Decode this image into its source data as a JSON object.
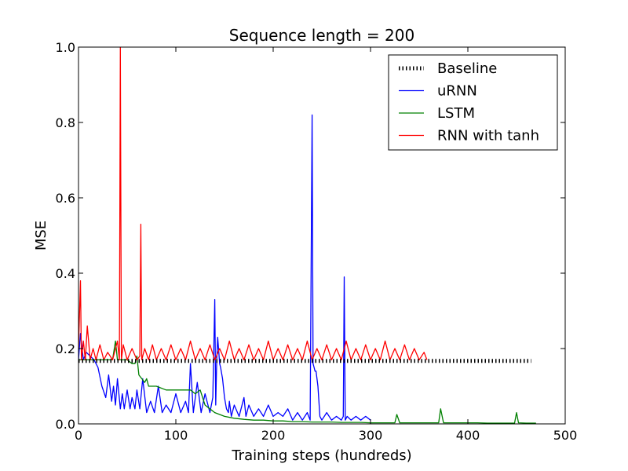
{
  "chart_data": {
    "type": "line",
    "title": "Sequence length = 200",
    "xlabel": "Training steps (hundreds)",
    "ylabel": "MSE",
    "xlim": [
      0,
      500
    ],
    "ylim": [
      0.0,
      1.0
    ],
    "xticks": [
      0,
      100,
      200,
      300,
      400,
      500
    ],
    "xtick_labels": [
      "0",
      "100",
      "200",
      "300",
      "400",
      "500"
    ],
    "yticks": [
      0.0,
      0.2,
      0.4,
      0.6,
      0.8,
      1.0
    ],
    "ytick_labels": [
      "0.0",
      "0.2",
      "0.4",
      "0.6",
      "0.8",
      "1.0"
    ],
    "grid": false,
    "legend_position": "top-right",
    "series": [
      {
        "name": "Baseline",
        "color": "#000000",
        "style": "dotted",
        "x": [
          0,
          465
        ],
        "y": [
          0.167,
          0.167
        ]
      },
      {
        "name": "uRNN",
        "color": "#0000ff",
        "style": "solid",
        "x": [
          0,
          2,
          5,
          8,
          12,
          16,
          20,
          24,
          28,
          31,
          34,
          36,
          38,
          40,
          43,
          45,
          47,
          50,
          53,
          55,
          58,
          60,
          63,
          66,
          70,
          74,
          78,
          82,
          86,
          90,
          95,
          100,
          105,
          110,
          113,
          115,
          118,
          122,
          126,
          130,
          135,
          138,
          140,
          141,
          142,
          143,
          145,
          146,
          148,
          150,
          152,
          154,
          155,
          157,
          160,
          165,
          170,
          172,
          175,
          180,
          185,
          190,
          195,
          200,
          205,
          210,
          215,
          220,
          225,
          230,
          235,
          238,
          240,
          241,
          242,
          243,
          244,
          246,
          248,
          250,
          255,
          260,
          265,
          270,
          272,
          273,
          274,
          276,
          280,
          285,
          290,
          295,
          300
        ],
        "y": [
          0.17,
          0.24,
          0.17,
          0.19,
          0.18,
          0.17,
          0.15,
          0.1,
          0.07,
          0.13,
          0.06,
          0.1,
          0.05,
          0.12,
          0.04,
          0.08,
          0.04,
          0.09,
          0.04,
          0.07,
          0.04,
          0.09,
          0.04,
          0.12,
          0.03,
          0.06,
          0.03,
          0.1,
          0.03,
          0.05,
          0.03,
          0.08,
          0.03,
          0.06,
          0.03,
          0.16,
          0.03,
          0.11,
          0.03,
          0.08,
          0.03,
          0.07,
          0.33,
          0.05,
          0.17,
          0.23,
          0.16,
          0.15,
          0.12,
          0.07,
          0.04,
          0.03,
          0.06,
          0.02,
          0.05,
          0.02,
          0.07,
          0.02,
          0.05,
          0.02,
          0.04,
          0.02,
          0.05,
          0.02,
          0.03,
          0.02,
          0.04,
          0.01,
          0.03,
          0.01,
          0.03,
          0.01,
          0.82,
          0.16,
          0.15,
          0.14,
          0.14,
          0.1,
          0.02,
          0.01,
          0.03,
          0.01,
          0.02,
          0.01,
          0.02,
          0.39,
          0.01,
          0.02,
          0.01,
          0.02,
          0.01,
          0.02,
          0.01
        ]
      },
      {
        "name": "LSTM",
        "color": "#008000",
        "style": "solid",
        "x": [
          0,
          10,
          20,
          30,
          35,
          38,
          40,
          45,
          50,
          55,
          58,
          60,
          62,
          65,
          68,
          70,
          72,
          75,
          80,
          90,
          100,
          110,
          115,
          120,
          125,
          130,
          135,
          140,
          150,
          160,
          170,
          180,
          190,
          200,
          210,
          220,
          230,
          240,
          250,
          260,
          270,
          280,
          290,
          300,
          310,
          320,
          325,
          327,
          330,
          340,
          350,
          360,
          370,
          372,
          375,
          380,
          390,
          400,
          410,
          420,
          430,
          440,
          448,
          450,
          452,
          460,
          470
        ],
        "y": [
          0.17,
          0.17,
          0.17,
          0.17,
          0.17,
          0.22,
          0.17,
          0.17,
          0.17,
          0.16,
          0.16,
          0.18,
          0.13,
          0.12,
          0.11,
          0.12,
          0.1,
          0.1,
          0.1,
          0.09,
          0.09,
          0.09,
          0.09,
          0.08,
          0.09,
          0.05,
          0.04,
          0.03,
          0.02,
          0.015,
          0.012,
          0.01,
          0.01,
          0.008,
          0.008,
          0.006,
          0.006,
          0.005,
          0.005,
          0.005,
          0.004,
          0.004,
          0.004,
          0.003,
          0.003,
          0.003,
          0.003,
          0.025,
          0.003,
          0.003,
          0.003,
          0.003,
          0.003,
          0.04,
          0.003,
          0.003,
          0.003,
          0.003,
          0.003,
          0.002,
          0.002,
          0.002,
          0.002,
          0.03,
          0.003,
          0.002,
          0.002
        ]
      },
      {
        "name": "RNN with tanh",
        "color": "#ff0000",
        "style": "solid",
        "x": [
          0,
          2,
          3,
          5,
          7,
          9,
          12,
          15,
          18,
          22,
          26,
          30,
          35,
          40,
          42,
          43,
          44,
          46,
          50,
          55,
          60,
          63,
          64,
          65,
          68,
          72,
          76,
          80,
          85,
          90,
          95,
          100,
          105,
          110,
          115,
          120,
          125,
          130,
          135,
          140,
          145,
          150,
          155,
          160,
          165,
          170,
          175,
          180,
          185,
          190,
          195,
          200,
          205,
          210,
          215,
          220,
          225,
          230,
          235,
          240,
          245,
          250,
          255,
          260,
          265,
          270,
          275,
          280,
          285,
          290,
          295,
          300,
          305,
          310,
          315,
          320,
          325,
          330,
          335,
          340,
          345,
          350,
          355,
          358
        ],
        "y": [
          0.2,
          0.38,
          0.17,
          0.22,
          0.17,
          0.26,
          0.17,
          0.2,
          0.17,
          0.21,
          0.17,
          0.19,
          0.17,
          0.22,
          0.17,
          1.0,
          0.17,
          0.21,
          0.17,
          0.2,
          0.17,
          0.18,
          0.53,
          0.17,
          0.2,
          0.17,
          0.21,
          0.17,
          0.2,
          0.17,
          0.21,
          0.17,
          0.2,
          0.17,
          0.22,
          0.17,
          0.2,
          0.17,
          0.21,
          0.17,
          0.2,
          0.17,
          0.22,
          0.17,
          0.2,
          0.17,
          0.21,
          0.17,
          0.2,
          0.17,
          0.22,
          0.17,
          0.2,
          0.17,
          0.21,
          0.17,
          0.2,
          0.17,
          0.22,
          0.17,
          0.2,
          0.17,
          0.21,
          0.17,
          0.2,
          0.17,
          0.22,
          0.17,
          0.2,
          0.17,
          0.21,
          0.17,
          0.2,
          0.17,
          0.22,
          0.17,
          0.2,
          0.17,
          0.21,
          0.17,
          0.2,
          0.17,
          0.19,
          0.17
        ]
      }
    ]
  }
}
